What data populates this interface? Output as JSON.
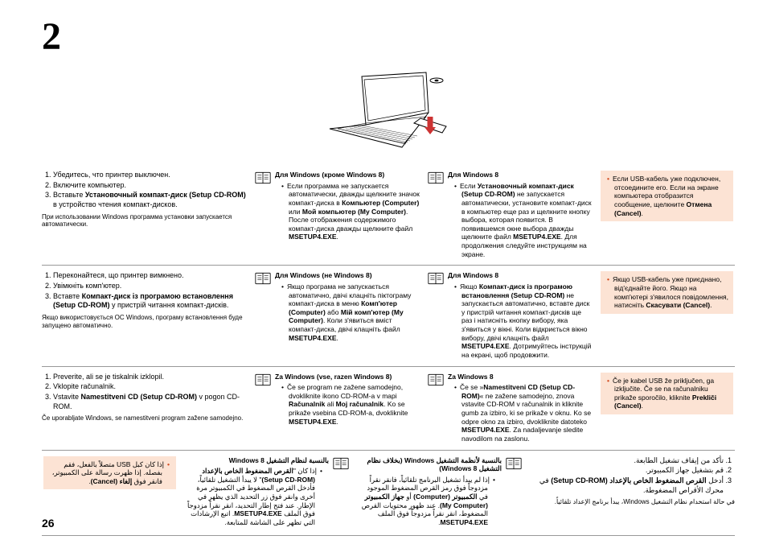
{
  "step_number": "2",
  "page_number": "26",
  "ru": {
    "steps": [
      "Убедитесь, что принтер выключен.",
      "Включите компьютер.",
      "Вставьте <b>Установочный компакт-диск (Setup CD-ROM)</b> в устройство чтения компакт-дисков."
    ],
    "note": "При использовании Windows программа установки запускается автоматически.",
    "mid1_head": "Для Windows (кроме Windows 8)",
    "mid1_body": "Если программа не запускается автоматически, дважды щелкните значок компакт-диска в <b>Компьютер (Computer)</b> или <b>Мой компьютер (My Computer)</b>. После отображения содержимого компакт-диска дважды щелкните файл <b>MSETUP4.EXE</b>.",
    "mid2_head": "Для Windows 8",
    "mid2_body": "Если <b>Установочный компакт-диск (Setup CD-ROM)</b> не запускается автоматически, установите компакт-диск в компьютер еще раз и щелкните кнопку выбора, которая появится. В появившемся окне выбора дважды щелкните файл <b>MSETUP4.EXE</b>. Для продолжения следуйте инструкциям на экране.",
    "warn": "Если USB-кабель уже подключен, отсоедините его. Если на экране компьютера отобразится сообщение, щелкните <b>Отмена (Cancel)</b>."
  },
  "uk": {
    "steps": [
      "Переконайтеся, що принтер вимкнено.",
      "Увімкніть комп'ютер.",
      "Вставте <b>Компакт-диск із програмою встановлення (Setup CD-ROM)</b> у пристрій читання компакт-дисків."
    ],
    "note": "Якщо використовується ОС Windows, програму встановлення буде запущено автоматично.",
    "mid1_head": "Для Windows (не Windows 8)",
    "mid1_body": "Якщо програма не запускається автоматично, двічі клацніть піктограму компакт-диска в меню <b>Комп'ютер (Computer)</b> або <b>Мій комп'ютер (My Computer)</b>. Коли з'явиться вміст компакт-диска, двічі клацніть файл <b>MSETUP4.EXE</b>.",
    "mid2_head": "Для Windows 8",
    "mid2_body": "Якщо <b>Компакт-диск із програмою встановлення (Setup CD-ROM)</b> не запускається автоматично, вставте диск у пристрій читання компакт-дисків ще раз і натисніть кнопку вибору, яка з'явиться у вікні. Коли відкриється вікно вибору, двічі клацніть файл <b>MSETUP4.EXE</b>. Дотримуйтесь інструкцій на екрані, щоб продовжити.",
    "warn": "Якщо USB-кабель уже приєднано, від'єднайте його. Якщо на комп'ютері з'явилося повідомлення, натисніть <b>Скасувати (Cancel)</b>."
  },
  "sl": {
    "steps": [
      "Preverite, ali se je tiskalnik izklopil.",
      "Vklopite računalnik.",
      "Vstavite <b>Namestitveni CD (Setup CD-ROM)</b> v pogon CD-ROM."
    ],
    "note": "Če uporabljate Windows, se namestitveni program zažene samodejno.",
    "mid1_head": "Za Windows (vse, razen Windows 8)",
    "mid1_body": "Če se program ne zažene samodejno, dvokliknite ikono CD-ROM-a v mapi <b>Računalnik</b> ali <b>Moj računalnik</b>. Ko se prikaže vsebina CD-ROM-a, dvokliknite <b>MSETUP4.EXE</b>.",
    "mid2_head": "Za Windows 8",
    "mid2_body": "Če se »<b>Namestitveni CD (Setup CD-ROM)</b>« ne zažene samodejno, znova vstavite CD-ROM v računalnik in kliknite gumb za izbiro, ki se prikaže v oknu. Ko se odpre okno za izbiro, dvokliknite datoteko <b>MSETUP4.EXE</b>. Za nadaljevanje sledite navodilom na zaslonu.",
    "warn": "Če je kabel USB že priključen, ga izključite. Če se na računalniku prikaže sporočilo, kliknite <b>Prekliči (Cancel)</b>."
  },
  "ar": {
    "steps": [
      "تأكد من إيقاف تشغيل الطابعة.",
      "قم بتشغيل جهاز الكمبيوتر.",
      "أدخل <b>القرص المضغوط الخاص بالإعداد (Setup CD-ROM)</b> في محرك الأقراص المضغوطة."
    ],
    "note": "في حالة استخدام نظام التشغيل Windows، يبدأ برنامج الإعداد تلقائياً.",
    "mid1_head": "بالنسبة لأنظمة التشغيل Windows (بخلاف نظام التشغيل Windows 8)",
    "mid1_body": "إذا لم يبدأ تشغيل البرنامج تلقائياً، فانقر نقراً مزدوجاً فوق رمز القرص المضغوط الموجود في <b>الكمبيوتر (Computer)</b> أو <b>جهاز الكمبيوتر (My Computer)</b>. عند ظهور محتويات القرص المضغوط، انقر نقراً مزدوجاً فوق الملف <b>MSETUP4.EXE</b>.",
    "mid2_head": "بالنسبة لنظام التشغيل Windows 8",
    "mid2_body": "إذا كان \"<b>القرص المضغوط الخاص بالإعداد (Setup CD-ROM)</b>\" لا يبدأ التشغيل تلقائياً، فأدخل القرص المضغوط في الكمبيوتر مرة أخرى وانقر فوق زر التحديد الذي يظهر في الإطار. عند فتح إطار التحديد، انقر نقراً مزدوجاً فوق الملف <b>MSETUP4.EXE</b>. اتبع الإرشادات التي تظهر على الشاشة للمتابعة.",
    "warn": "إذا كان كبل USB متصلاً بالفعل، فقم بفصله. إذا ظهرت رسالة على الكمبيوتر، فانقر فوق <b>إلغاء (Cancel)</b>."
  }
}
